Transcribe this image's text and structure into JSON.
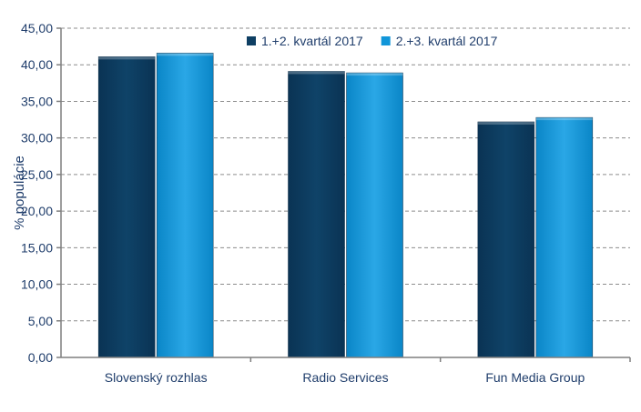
{
  "chart_data": {
    "type": "bar",
    "categories": [
      "Slovenský rozhlas",
      "Radio Services",
      "Fun Media Group"
    ],
    "series": [
      {
        "name": "1.+2. kvartál 2017",
        "values": [
          41.1,
          39.1,
          32.2
        ],
        "color": "#0e3f63"
      },
      {
        "name": "2.+3. kvartál 2017",
        "values": [
          41.6,
          38.9,
          32.8
        ],
        "color": "#1196d9"
      }
    ],
    "title": "",
    "xlabel": "",
    "ylabel": "% populácie",
    "ylim": [
      0,
      45
    ],
    "yticks": [
      "0,00",
      "5,00",
      "10,00",
      "15,00",
      "20,00",
      "25,00",
      "30,00",
      "35,00",
      "40,00",
      "45,00"
    ],
    "grid": true,
    "legend": "top-right"
  }
}
